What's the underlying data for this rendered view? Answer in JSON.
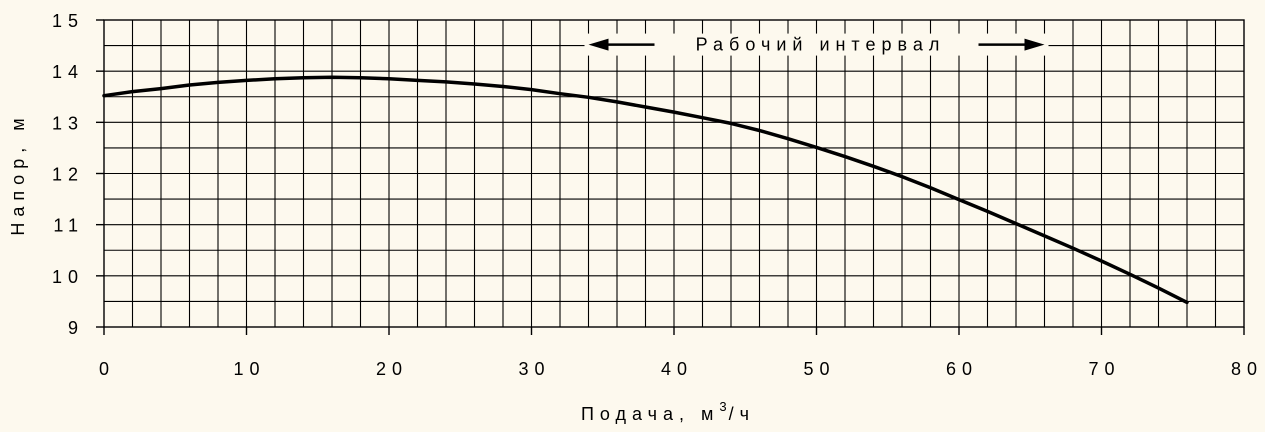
{
  "colors": {
    "background": "#fdf9ee",
    "grid": "#000000",
    "curve": "#000000"
  },
  "chart_data": {
    "type": "line",
    "title": "",
    "xlabel": "Подача, м",
    "xlabel_superscript": "3",
    "xlabel_suffix": "/ч",
    "ylabel": "Напор, м",
    "xlim": [
      0,
      80
    ],
    "ylim": [
      9,
      15
    ],
    "x_major_ticks": [
      0,
      10,
      20,
      30,
      40,
      50,
      60,
      70,
      80
    ],
    "x_tick_labels": [
      "0",
      "10",
      "20",
      "30",
      "40",
      "50",
      "60",
      "70",
      "80"
    ],
    "y_major_ticks": [
      9,
      10,
      11,
      12,
      13,
      14,
      15
    ],
    "y_tick_labels": [
      "9",
      "10",
      "11",
      "12",
      "13",
      "14",
      "15"
    ],
    "x_minor_step": 2,
    "y_minor_step": 0.5,
    "grid": true,
    "annotation": {
      "text": "Рабочий интервал",
      "x_start": 34,
      "x_end": 66,
      "y": 14.5
    },
    "series": [
      {
        "values_x": [
          0,
          2,
          4,
          6,
          8,
          10,
          12,
          14,
          16,
          18,
          20,
          22,
          24,
          26,
          28,
          30,
          32,
          34,
          36,
          38,
          40,
          42,
          44,
          46,
          48,
          50,
          52,
          54,
          56,
          58,
          60,
          62,
          64,
          66,
          68,
          70,
          72,
          74,
          76
        ],
        "values_y": [
          13.52,
          13.6,
          13.66,
          13.73,
          13.78,
          13.82,
          13.85,
          13.87,
          13.88,
          13.87,
          13.85,
          13.82,
          13.79,
          13.75,
          13.7,
          13.64,
          13.56,
          13.49,
          13.4,
          13.3,
          13.2,
          13.09,
          12.98,
          12.84,
          12.68,
          12.51,
          12.33,
          12.14,
          11.94,
          11.72,
          11.49,
          11.26,
          11.02,
          10.78,
          10.54,
          10.29,
          10.03,
          9.76,
          9.48
        ]
      }
    ]
  }
}
